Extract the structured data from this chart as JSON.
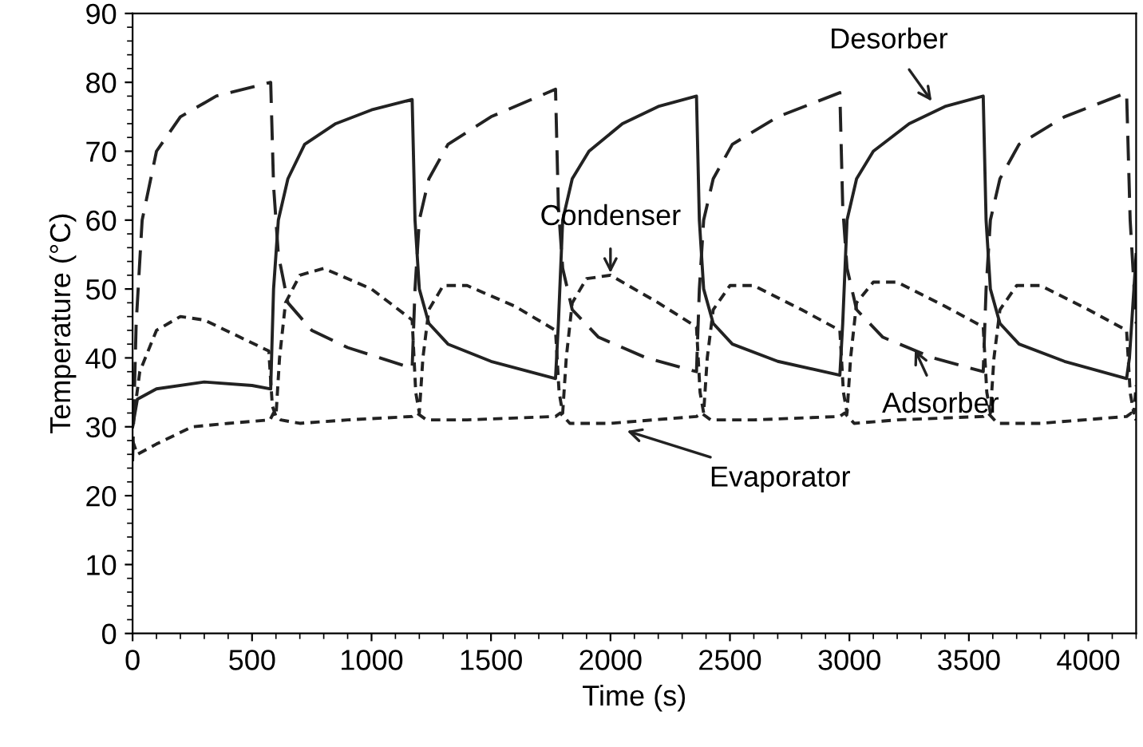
{
  "chart_data": {
    "type": "line",
    "xlabel": "Time (s)",
    "ylabel": "Temperature (°C)",
    "xlim": [
      0,
      4200
    ],
    "xticks": [
      0,
      500,
      1000,
      1500,
      2000,
      2500,
      3000,
      3500,
      4000
    ],
    "ylim": [
      0,
      90
    ],
    "yticks": [
      0,
      10,
      20,
      30,
      40,
      50,
      60,
      70,
      80,
      90
    ],
    "grid": false,
    "legend": false,
    "marker": "none",
    "series": [
      {
        "color": "#222222",
        "line_style": "solid",
        "x": [
          0,
          20,
          100,
          300,
          500,
          578,
          590,
          610,
          650,
          720,
          850,
          1000,
          1170,
          1182,
          1200,
          1240,
          1320,
          1500,
          1770,
          1782,
          1800,
          1840,
          1910,
          2050,
          2200,
          2360,
          2372,
          2390,
          2430,
          2510,
          2700,
          2960,
          2972,
          2990,
          3030,
          3100,
          3250,
          3400,
          3560,
          3572,
          3590,
          3630,
          3710,
          3900,
          4160,
          4172,
          4200
        ],
        "values": [
          30,
          34,
          35.5,
          36.5,
          36,
          35.5,
          50,
          60,
          66,
          71,
          74,
          76,
          77.5,
          60,
          50,
          45,
          42,
          39.5,
          37,
          45,
          60,
          66,
          70,
          74,
          76.5,
          78,
          60,
          50,
          45,
          42,
          39.5,
          37.5,
          45,
          60,
          66,
          70,
          74,
          76.5,
          78,
          60,
          50,
          45,
          42,
          39.5,
          37,
          40,
          55
        ]
      },
      {
        "color": "#222222",
        "line_style": "dashed",
        "x": [
          0,
          15,
          40,
          100,
          200,
          350,
          578,
          590,
          610,
          650,
          750,
          900,
          1170,
          1182,
          1200,
          1240,
          1320,
          1500,
          1770,
          1782,
          1800,
          1840,
          1950,
          2150,
          2360,
          2372,
          2390,
          2430,
          2510,
          2700,
          2960,
          2972,
          2990,
          3030,
          3140,
          3350,
          3560,
          3572,
          3590,
          3630,
          3710,
          3900,
          4160,
          4175,
          4200
        ],
        "values": [
          25,
          45,
          60,
          70,
          75,
          78,
          80,
          65,
          55,
          48,
          44,
          41.5,
          38.5,
          50,
          60,
          66,
          71,
          75,
          79,
          62,
          53,
          47,
          43,
          40,
          38,
          50,
          60,
          66,
          71,
          75,
          78.5,
          62,
          53,
          47,
          43,
          40,
          38,
          50,
          60,
          66,
          71,
          75,
          78.5,
          60,
          45
        ]
      },
      {
        "color": "#222222",
        "line_style": "dotted",
        "x": [
          0,
          30,
          100,
          200,
          300,
          450,
          570,
          585,
          600,
          615,
          640,
          700,
          800,
          1000,
          1170,
          1185,
          1200,
          1215,
          1240,
          1300,
          1400,
          1600,
          1770,
          1785,
          1800,
          1815,
          1840,
          1900,
          2000,
          2200,
          2360,
          2375,
          2390,
          2405,
          2430,
          2500,
          2600,
          2800,
          2960,
          2975,
          2990,
          3005,
          3030,
          3100,
          3200,
          3400,
          3560,
          3575,
          3590,
          3605,
          3630,
          3700,
          3800,
          4000,
          4160,
          4175,
          4190,
          4200
        ],
        "values": [
          30,
          38,
          44,
          46,
          45.5,
          43,
          41,
          33,
          31.5,
          40,
          48,
          52,
          53,
          50,
          45.5,
          35,
          32,
          40,
          47,
          50.5,
          50.5,
          47.5,
          44,
          35,
          32,
          40,
          48,
          51.5,
          52,
          48,
          44.5,
          35,
          32,
          40,
          47,
          50.5,
          50.5,
          47,
          44,
          35,
          32,
          40,
          48,
          51,
          51,
          47.5,
          44.5,
          35,
          32,
          40,
          47,
          50.5,
          50.5,
          47,
          44,
          35,
          32,
          36
        ]
      },
      {
        "color": "#222222",
        "line_style": "dotted",
        "x": [
          0,
          20,
          100,
          250,
          400,
          575,
          590,
          620,
          700,
          900,
          1170,
          1190,
          1230,
          1400,
          1770,
          1790,
          1830,
          2000,
          2360,
          2380,
          2420,
          2600,
          2960,
          2980,
          3020,
          3200,
          3560,
          3580,
          3620,
          3800,
          4160,
          4180,
          4200
        ],
        "values": [
          28,
          26,
          27.5,
          30,
          30.5,
          31,
          32,
          31,
          30.5,
          31,
          31.5,
          32,
          31,
          31,
          31.5,
          32,
          30.5,
          30.5,
          31.5,
          32,
          31,
          31,
          31.5,
          32,
          30.5,
          31,
          31.5,
          32,
          30.5,
          30.5,
          31.5,
          32,
          31
        ]
      }
    ],
    "annotations": [
      {
        "text": "Desorber",
        "x": 3350,
        "y": 77
      },
      {
        "text": "Condenser",
        "x": 2000,
        "y": 52
      },
      {
        "text": "Adsorber",
        "x": 3270,
        "y": 41.5
      },
      {
        "text": "Evaporator",
        "x": 2060,
        "y": 29.5
      }
    ]
  }
}
